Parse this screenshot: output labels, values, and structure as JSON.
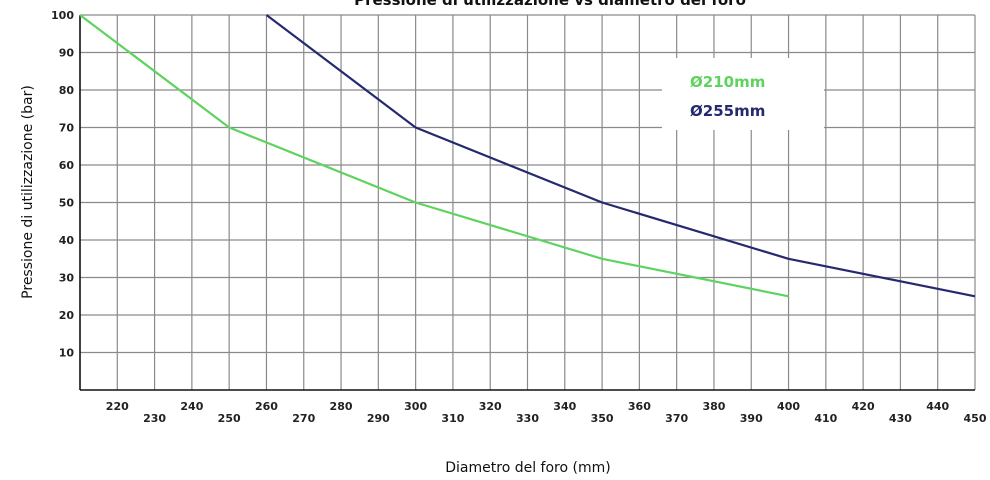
{
  "chart_data": {
    "type": "line",
    "title": "Pressione di utilizzazione vs diametro del foro",
    "xlabel": "Diametro del foro (mm)",
    "ylabel": "Pressione  di utilizzazione (bar)",
    "xlim": [
      210,
      450
    ],
    "ylim": [
      0,
      100
    ],
    "x_ticks": [
      220,
      230,
      240,
      250,
      260,
      270,
      280,
      290,
      300,
      310,
      320,
      330,
      340,
      350,
      360,
      370,
      380,
      390,
      400,
      410,
      420,
      430,
      440,
      450
    ],
    "y_ticks": [
      10,
      20,
      30,
      40,
      50,
      60,
      70,
      80,
      90,
      100
    ],
    "grid": true,
    "legend_position": "top-right",
    "series": [
      {
        "name": "Ø210mm",
        "color": "#5fd35f",
        "x": [
          210,
          250,
          300,
          350,
          400
        ],
        "y": [
          100,
          70,
          50,
          35,
          25
        ]
      },
      {
        "name": "Ø255mm",
        "color": "#252a6e",
        "x": [
          260,
          300,
          350,
          400,
          450
        ],
        "y": [
          100,
          70,
          50,
          35,
          25
        ]
      }
    ]
  }
}
